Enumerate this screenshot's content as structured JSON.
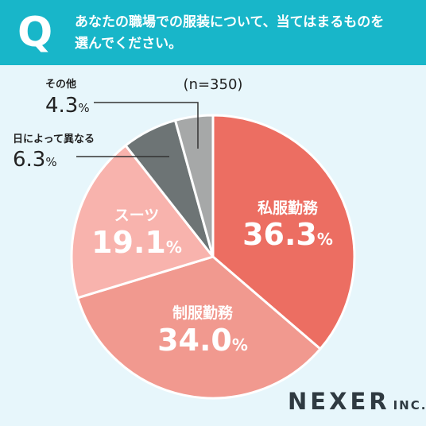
{
  "header": {
    "q_letter": "Q",
    "question_line1": "あなたの職場での服装について、当てはまるものを",
    "question_line2": "選んでください。"
  },
  "sample_note": "(n=350)",
  "brand": {
    "name": "NEXER",
    "suffix": "INC."
  },
  "chart_data": {
    "type": "pie",
    "categories": [
      "私服勤務",
      "制服勤務",
      "スーツ",
      "日によって異なる",
      "その他"
    ],
    "values": [
      36.3,
      34.0,
      19.1,
      6.3,
      4.3
    ],
    "unit": "%",
    "colors": [
      "#ec6e62",
      "#f1998f",
      "#f8b3ad",
      "#6d7475",
      "#a6a8a8"
    ],
    "label_placement": [
      "inside",
      "inside",
      "inside",
      "outside",
      "outside"
    ]
  }
}
